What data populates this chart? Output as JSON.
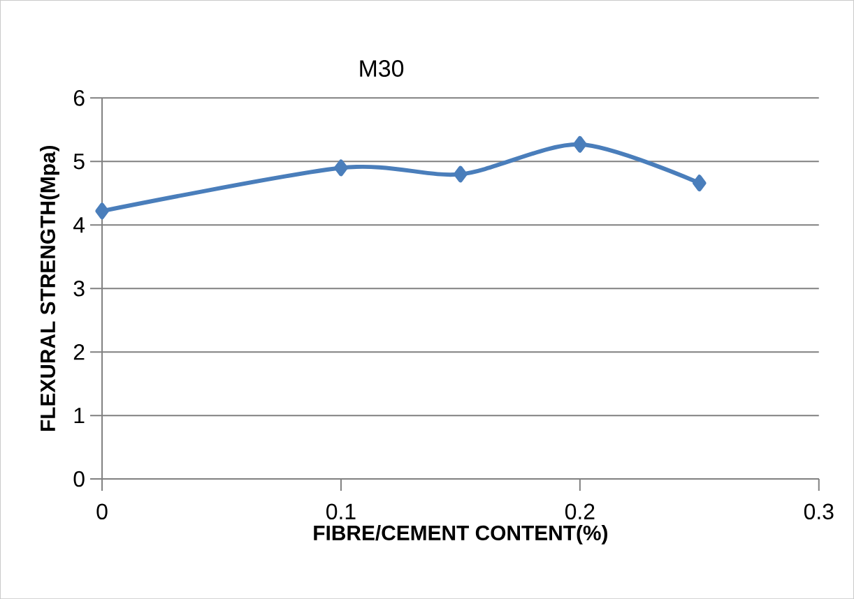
{
  "chart_data": {
    "type": "line",
    "title": "M30",
    "xlabel": "FIBRE/CEMENT CONTENT(%)",
    "ylabel": "FLEXURAL STRENGTH(Mpa)",
    "x": [
      0,
      0.1,
      0.15,
      0.2,
      0.25
    ],
    "series": [
      {
        "color": "#4a7ebb",
        "values": [
          4.22,
          4.9,
          4.8,
          5.27,
          4.66
        ]
      }
    ],
    "xlim": [
      0,
      0.3
    ],
    "xticks": [
      0,
      0.1,
      0.2,
      0.3
    ],
    "ylim": [
      0,
      6
    ],
    "yticks": [
      0,
      1,
      2,
      3,
      4,
      5,
      6
    ],
    "grid": "y",
    "marker": "diamond",
    "line_style": "solid"
  }
}
